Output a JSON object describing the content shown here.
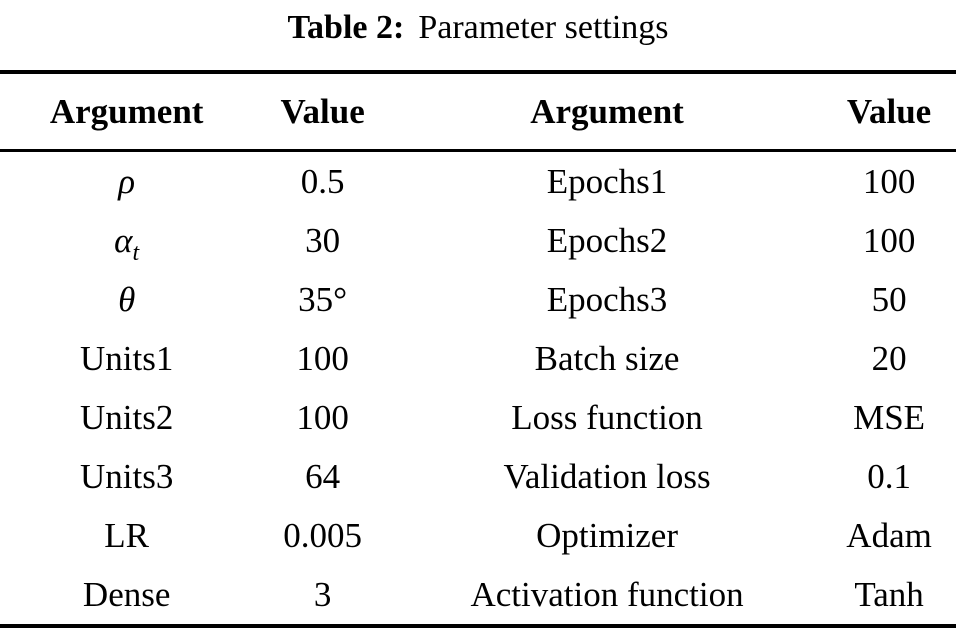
{
  "caption": {
    "label": "Table 2:",
    "text": "Parameter settings"
  },
  "table": {
    "headers": [
      "Argument",
      "Value",
      "Argument",
      "Value"
    ],
    "rows": [
      [
        "ρ",
        "0.5",
        "Epochs1",
        "100"
      ],
      [
        {
          "base": "α",
          "sub": "t"
        },
        "30",
        "Epochs2",
        "100"
      ],
      [
        "θ",
        "35°",
        "Epochs3",
        "50"
      ],
      [
        "Units1",
        "100",
        "Batch size",
        "20"
      ],
      [
        "Units2",
        "100",
        "Loss function",
        "MSE"
      ],
      [
        "Units3",
        "64",
        "Validation loss",
        "0.1"
      ],
      [
        "LR",
        "0.005",
        "Optimizer",
        "Adam"
      ],
      [
        "Dense",
        "3",
        "Activation function",
        "Tanh"
      ]
    ]
  },
  "colors": {
    "text": "#000000",
    "background": "#ffffff",
    "rule": "#000000"
  }
}
